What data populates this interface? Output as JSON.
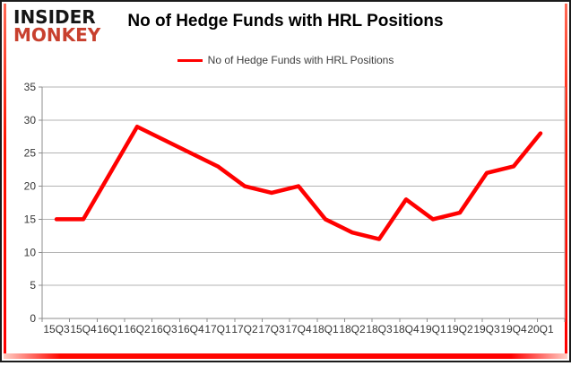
{
  "logo": {
    "line1": "INSIDER",
    "line2": "MONKEY"
  },
  "header": {
    "title": "No of Hedge Funds with HRL Positions"
  },
  "legend": {
    "label": "No of Hedge Funds with HRL Positions"
  },
  "colors": {
    "line": "#ff0000",
    "grid": "#b3b3b3",
    "axis": "#8c8c8c",
    "label": "#363636",
    "logo_red": "#c8402e",
    "frame": "#1b1b1b",
    "accent_red": "#ff0000"
  },
  "chart_data": {
    "type": "line",
    "title": "No of Hedge Funds with HRL Positions",
    "categories": [
      "15Q3",
      "15Q4",
      "16Q1",
      "16Q2",
      "16Q3",
      "16Q4",
      "17Q1",
      "17Q2",
      "17Q3",
      "17Q4",
      "18Q1",
      "18Q2",
      "18Q3",
      "18Q4",
      "19Q1",
      "19Q2",
      "19Q3",
      "19Q4",
      "20Q1"
    ],
    "series": [
      {
        "name": "No of Hedge Funds with HRL Positions",
        "values": [
          15,
          15,
          22,
          29,
          27,
          25,
          23,
          20,
          19,
          20,
          15,
          13,
          12,
          18,
          15,
          16,
          22,
          23,
          28
        ]
      }
    ],
    "xlabel": "",
    "ylabel": "",
    "ylim": [
      0,
      35
    ],
    "ytick_step": 5,
    "grid": true,
    "legend_position": "top-center"
  }
}
